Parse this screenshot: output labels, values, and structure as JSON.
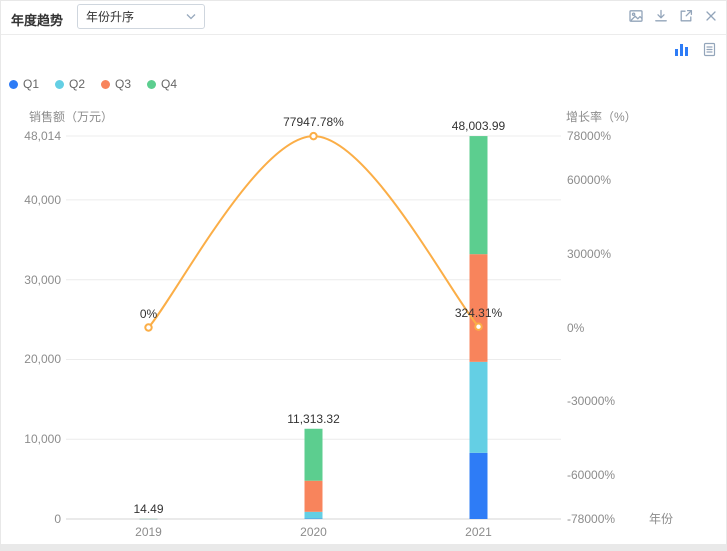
{
  "header": {
    "title": "年度趋势",
    "sort_dropdown": {
      "value": "年份升序"
    },
    "icons": [
      "export-image",
      "download",
      "open-in-new",
      "close"
    ]
  },
  "toolbar": {
    "view_icons": [
      "chart-view",
      "table-view"
    ],
    "active_view": "chart-view"
  },
  "legend": {
    "items": [
      {
        "label": "Q1",
        "color": "#2e7cf6"
      },
      {
        "label": "Q2",
        "color": "#64cfe4"
      },
      {
        "label": "Q3",
        "color": "#f8845c"
      },
      {
        "label": "Q4",
        "color": "#5cce8f"
      }
    ]
  },
  "chart_data": {
    "type": "bar",
    "subtype": "stacked bars with growth-rate line, dual y-axes",
    "categories": [
      "2019",
      "2020",
      "2021"
    ],
    "series": [
      {
        "name": "Q1",
        "color": "#2e7cf6",
        "values": [
          3,
          50,
          8300
        ]
      },
      {
        "name": "Q2",
        "color": "#64cfe4",
        "values": [
          4,
          850,
          11400
        ]
      },
      {
        "name": "Q3",
        "color": "#f8845c",
        "values": [
          4,
          3900,
          13500
        ]
      },
      {
        "name": "Q4",
        "color": "#5cce8f",
        "values": [
          3.49,
          6513.32,
          14803.99
        ]
      }
    ],
    "series_note": "per-quarter splits estimated from bar pixel heights; only stack totals are labeled on the chart",
    "totals": {
      "values": [
        14.49,
        11313.32,
        48003.99
      ],
      "labels": [
        "14.49",
        "11,313.32",
        "48,003.99"
      ]
    },
    "line_series": {
      "name": "增长率",
      "color": "#fbae47",
      "values": [
        0,
        77947.78,
        324.31
      ],
      "labels": [
        "0%",
        "77947.78%",
        "324.31%"
      ]
    },
    "left_axis": {
      "title": "销售额（万元）",
      "max": 48014,
      "ticks": [
        {
          "v": 48014,
          "label": "48,014"
        },
        {
          "v": 40000,
          "label": "40,000"
        },
        {
          "v": 30000,
          "label": "30,000"
        },
        {
          "v": 20000,
          "label": "20,000"
        },
        {
          "v": 10000,
          "label": "10,000"
        },
        {
          "v": 0,
          "label": "0"
        }
      ]
    },
    "right_axis": {
      "title": "增长率（%）",
      "min": -78000,
      "max": 78000,
      "ticks": [
        {
          "v": 78000,
          "label": "78000%"
        },
        {
          "v": 60000,
          "label": "60000%"
        },
        {
          "v": 30000,
          "label": "30000%"
        },
        {
          "v": 0,
          "label": "0%"
        },
        {
          "v": -30000,
          "label": "-30000%"
        },
        {
          "v": -60000,
          "label": "-60000%"
        },
        {
          "v": -78000,
          "label": "-78000%"
        }
      ]
    },
    "x_axis": {
      "title": "年份",
      "labels": [
        "2019",
        "2020",
        "2021"
      ]
    },
    "grid": true,
    "legend_position": "top-left"
  }
}
